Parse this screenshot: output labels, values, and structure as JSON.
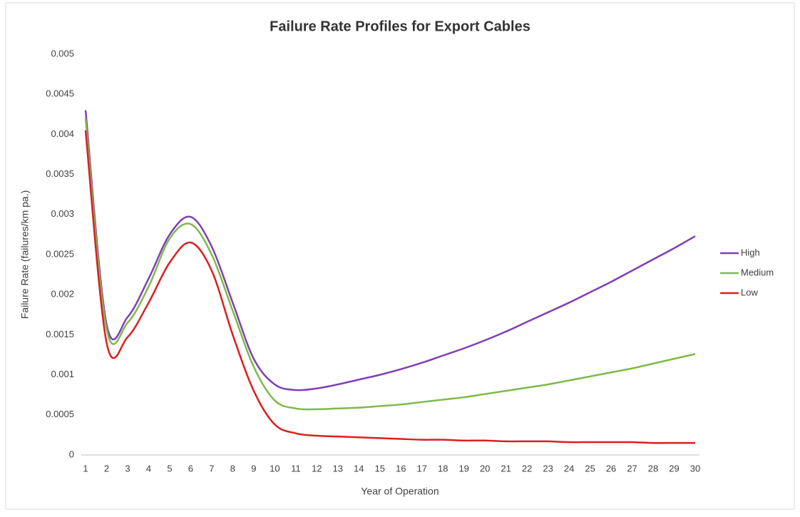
{
  "chart_data": {
    "type": "line",
    "title": "Failure Rate Profiles for Export Cables",
    "x_label": "Year of Operation",
    "y_label": "Failure Rate (failures/km pa.)",
    "categories": [
      1,
      2,
      3,
      4,
      5,
      6,
      7,
      8,
      9,
      10,
      11,
      12,
      13,
      14,
      15,
      16,
      17,
      18,
      19,
      20,
      21,
      22,
      23,
      24,
      25,
      26,
      27,
      28,
      29,
      30
    ],
    "ylim": [
      0,
      0.005
    ],
    "yticks": [
      0,
      0.0005,
      0.001,
      0.0015,
      0.002,
      0.0025,
      0.003,
      0.0035,
      0.004,
      0.0045,
      0.005
    ],
    "grid": false,
    "legend": "right",
    "series": [
      {
        "name": "High",
        "color": "#7e3fb8",
        "values": [
          0.0043,
          0.00163,
          0.00172,
          0.0022,
          0.00275,
          0.00297,
          0.0026,
          0.0019,
          0.0012,
          0.00088,
          0.00081,
          0.00083,
          0.00088,
          0.00094,
          0.001,
          0.00107,
          0.00115,
          0.00124,
          0.00133,
          0.00143,
          0.00154,
          0.00166,
          0.00178,
          0.0019,
          0.00203,
          0.00216,
          0.0023,
          0.00244,
          0.00258,
          0.00273
        ]
      },
      {
        "name": "Medium",
        "color": "#7dba4a",
        "values": [
          0.0042,
          0.00157,
          0.00165,
          0.0021,
          0.0027,
          0.00288,
          0.0025,
          0.0018,
          0.0011,
          0.00068,
          0.00058,
          0.00057,
          0.00058,
          0.00059,
          0.00061,
          0.00063,
          0.00066,
          0.00069,
          0.00072,
          0.00076,
          0.0008,
          0.00084,
          0.00088,
          0.00093,
          0.00098,
          0.00103,
          0.00108,
          0.00114,
          0.0012,
          0.00126
        ]
      },
      {
        "name": "Low",
        "color": "#dd1f1f",
        "values": [
          0.00405,
          0.0014,
          0.00147,
          0.0019,
          0.0024,
          0.00265,
          0.0023,
          0.0015,
          0.0008,
          0.00038,
          0.00027,
          0.00024,
          0.00023,
          0.00022,
          0.00021,
          0.0002,
          0.00019,
          0.00019,
          0.00018,
          0.00018,
          0.00017,
          0.00017,
          0.00017,
          0.00016,
          0.00016,
          0.00016,
          0.00016,
          0.00015,
          0.00015,
          0.00015
        ]
      }
    ]
  }
}
